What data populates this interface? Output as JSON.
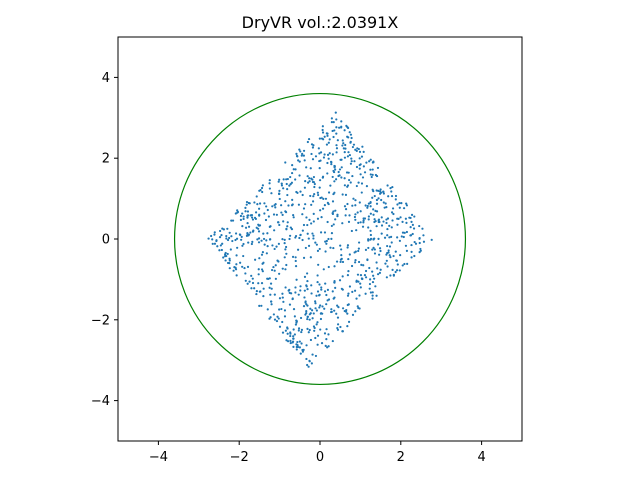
{
  "chart_data": {
    "type": "scatter",
    "title": "DryVR vol.:2.0391X",
    "xlabel": "",
    "ylabel": "",
    "xlim": [
      -5,
      5
    ],
    "ylim": [
      -5,
      5
    ],
    "xticks": [
      -4,
      -2,
      0,
      2,
      4
    ],
    "yticks": [
      -4,
      -2,
      0,
      2,
      4
    ],
    "xtick_labels": [
      "−4",
      "−2",
      "0",
      "2",
      "4"
    ],
    "ytick_labels": [
      "−4",
      "−2",
      "0",
      "2",
      "4"
    ],
    "grid": false,
    "legend": "none",
    "point_color": "#1f77b4",
    "circle_color": "#008000",
    "circle": {
      "center": [
        0,
        0
      ],
      "radius": 3.6
    },
    "scatter_region": {
      "shape": "diamond",
      "vertices": [
        [
          2.8,
          0.0
        ],
        [
          0.4,
          3.15
        ],
        [
          -2.8,
          0.0
        ],
        [
          -0.3,
          -3.2
        ]
      ],
      "approx_point_count": 1000
    }
  }
}
